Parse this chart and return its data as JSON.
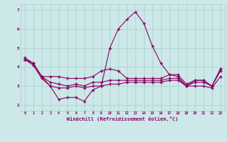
{
  "xlabel": "Windchill (Refroidissement éolien,°C)",
  "background_color": "#cce8e8",
  "line_color": "#880066",
  "grid_color": "#aacccc",
  "x": [
    0,
    1,
    2,
    3,
    4,
    5,
    6,
    7,
    8,
    9,
    10,
    11,
    12,
    13,
    14,
    15,
    16,
    17,
    18,
    19,
    20,
    21,
    22,
    23
  ],
  "line1": [
    4.5,
    4.2,
    3.5,
    3.0,
    2.3,
    2.4,
    2.4,
    2.2,
    2.8,
    3.0,
    5.0,
    6.0,
    6.5,
    6.9,
    6.3,
    5.1,
    4.2,
    3.6,
    3.5,
    3.0,
    3.3,
    3.3,
    3.0,
    3.9
  ],
  "line2": [
    4.4,
    4.2,
    3.5,
    3.5,
    3.5,
    3.4,
    3.4,
    3.4,
    3.5,
    3.8,
    3.9,
    3.8,
    3.4,
    3.4,
    3.4,
    3.4,
    3.4,
    3.6,
    3.6,
    3.1,
    3.3,
    3.3,
    3.0,
    3.9
  ],
  "line3": [
    4.4,
    4.2,
    3.5,
    3.2,
    3.1,
    3.0,
    3.1,
    3.0,
    3.2,
    3.2,
    3.3,
    3.3,
    3.3,
    3.3,
    3.3,
    3.3,
    3.3,
    3.4,
    3.4,
    3.0,
    3.2,
    3.2,
    3.0,
    3.8
  ],
  "line4": [
    4.4,
    4.1,
    3.4,
    3.0,
    2.9,
    2.9,
    3.0,
    2.9,
    3.0,
    3.0,
    3.1,
    3.1,
    3.2,
    3.2,
    3.2,
    3.2,
    3.2,
    3.3,
    3.3,
    3.0,
    3.0,
    3.0,
    2.9,
    3.5
  ],
  "ylim": [
    1.7,
    7.3
  ],
  "xlim": [
    -0.5,
    23.5
  ],
  "yticks": [
    2,
    3,
    4,
    5,
    6,
    7
  ],
  "xticks": [
    0,
    1,
    2,
    3,
    4,
    5,
    6,
    7,
    8,
    9,
    10,
    11,
    12,
    13,
    14,
    15,
    16,
    17,
    18,
    19,
    20,
    21,
    22,
    23
  ]
}
